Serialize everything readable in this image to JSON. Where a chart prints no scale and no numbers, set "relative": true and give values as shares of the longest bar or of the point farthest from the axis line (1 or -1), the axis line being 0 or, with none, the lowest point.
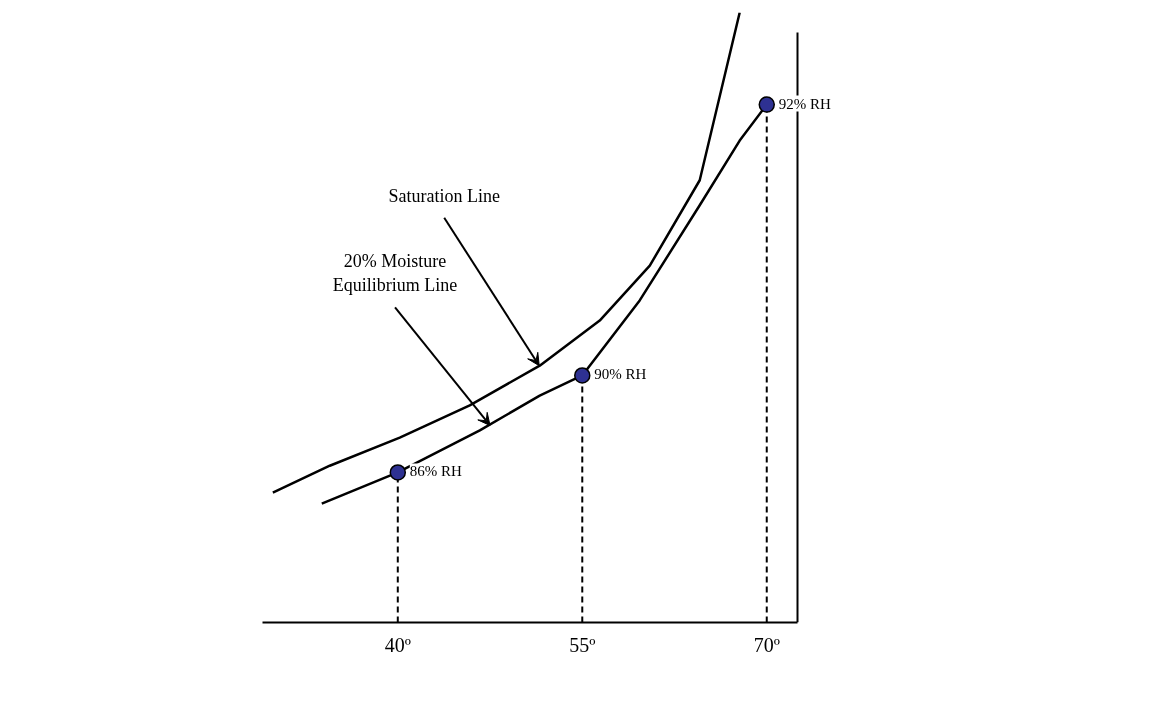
{
  "chart_data": {
    "type": "line",
    "relative": true,
    "xlim": [
      29,
      72.5
    ],
    "xticks": [
      {
        "value": 40,
        "label": "40º"
      },
      {
        "value": 55,
        "label": "55º"
      },
      {
        "value": 70,
        "label": "70º"
      }
    ],
    "marker": "none",
    "line_style": "solid",
    "series": [
      {
        "color": "#000000",
        "x": [
          29.84,
          34.47,
          40.16,
          45.85,
          51.54,
          56.42,
          60.49,
          64.55,
          67.8
        ],
        "values": [
          0.213,
          0.257,
          0.303,
          0.356,
          0.421,
          0.495,
          0.585,
          0.725,
          1.0
        ]
      },
      {
        "color": "#000000",
        "x": [
          33.82,
          40,
          46.67,
          51.54,
          55,
          59.67,
          64.55,
          67.8,
          70
        ],
        "values": [
          0.195,
          0.246,
          0.315,
          0.372,
          0.405,
          0.528,
          0.684,
          0.79,
          0.849
        ]
      },
      {
        "type": "lollipop",
        "color": "#2e3192",
        "line_style": "dashed",
        "marker": "circle",
        "x": [
          40,
          55,
          70
        ],
        "values": [
          0.246,
          0.405,
          0.849
        ]
      }
    ],
    "annotations": [
      {
        "text": "Saturation Line",
        "x": 51.5,
        "y": 0.421
      },
      {
        "text": "20% Moisture\nEquilibrium Line",
        "x": 47.5,
        "y": 0.323
      },
      {
        "text": "86% RH",
        "x": 40,
        "y": 0.246
      },
      {
        "text": "90% RH",
        "x": 55,
        "y": 0.405
      },
      {
        "text": "92% RH",
        "x": 70,
        "y": 0.849
      }
    ]
  }
}
